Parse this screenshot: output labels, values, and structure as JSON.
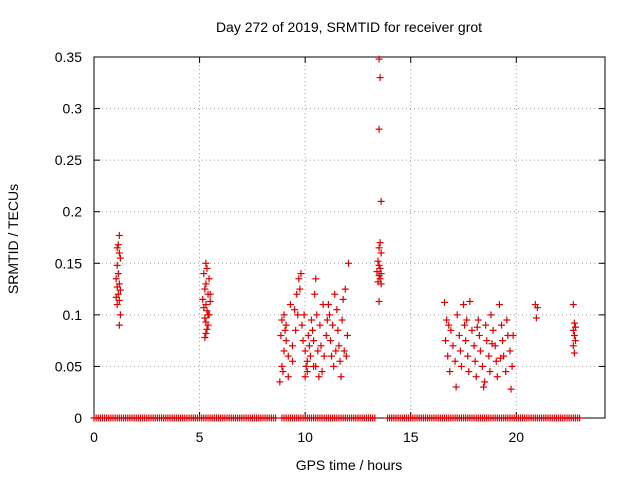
{
  "chart_data": {
    "type": "scatter",
    "title": "Day 272 of 2019, SRMTID for receiver grot",
    "xlabel": "GPS time / hours",
    "ylabel": "SRMTID / TECUs",
    "xlim": [
      0,
      24.2
    ],
    "ylim": [
      0,
      0.35
    ],
    "x_ticks": [
      0,
      5,
      10,
      15,
      20
    ],
    "x_tick_labels": [
      "0",
      "5",
      "10",
      "15",
      "20"
    ],
    "y_ticks": [
      0,
      0.05,
      0.1,
      0.15,
      0.2,
      0.25,
      0.3,
      0.35
    ],
    "y_tick_labels": [
      "0",
      "0.05",
      "0.1",
      "0.15",
      "0.2",
      "0.25",
      "0.3",
      "0.35"
    ],
    "grid": true,
    "marker": "+",
    "colors": {
      "series": "#dd0000",
      "grid": "#a0a0a0",
      "axis": "#000000"
    },
    "series": [
      {
        "name": "SRMTID",
        "points": [
          [
            1.2,
            0.177
          ],
          [
            1.15,
            0.168
          ],
          [
            1.1,
            0.165
          ],
          [
            1.2,
            0.16
          ],
          [
            1.25,
            0.155
          ],
          [
            1.1,
            0.148
          ],
          [
            1.15,
            0.14
          ],
          [
            1.05,
            0.135
          ],
          [
            1.2,
            0.13
          ],
          [
            1.1,
            0.127
          ],
          [
            1.25,
            0.124
          ],
          [
            1.15,
            0.12
          ],
          [
            1.05,
            0.117
          ],
          [
            1.2,
            0.114
          ],
          [
            1.1,
            0.11
          ],
          [
            1.25,
            0.1
          ],
          [
            1.2,
            0.09
          ],
          [
            5.3,
            0.15
          ],
          [
            5.35,
            0.145
          ],
          [
            5.2,
            0.14
          ],
          [
            5.45,
            0.135
          ],
          [
            5.3,
            0.13
          ],
          [
            5.25,
            0.125
          ],
          [
            5.4,
            0.12
          ],
          [
            5.15,
            0.115
          ],
          [
            5.5,
            0.113
          ],
          [
            5.3,
            0.11
          ],
          [
            5.2,
            0.107
          ],
          [
            5.35,
            0.104
          ],
          [
            5.45,
            0.1
          ],
          [
            5.25,
            0.097
          ],
          [
            5.3,
            0.093
          ],
          [
            5.4,
            0.09
          ],
          [
            5.35,
            0.086
          ],
          [
            5.3,
            0.082
          ],
          [
            5.25,
            0.078
          ],
          [
            5.4,
            0.1
          ],
          [
            5.5,
            0.12
          ],
          [
            8.8,
            0.035
          ],
          [
            8.9,
            0.05
          ],
          [
            9.0,
            0.065
          ],
          [
            8.85,
            0.08
          ],
          [
            9.1,
            0.09
          ],
          [
            9.0,
            0.1
          ],
          [
            8.95,
            0.045
          ],
          [
            9.2,
            0.06
          ],
          [
            9.1,
            0.075
          ],
          [
            8.9,
            0.095
          ],
          [
            9.3,
            0.11
          ],
          [
            9.4,
            0.07
          ],
          [
            9.5,
            0.105
          ],
          [
            9.6,
            0.12
          ],
          [
            9.55,
            0.085
          ],
          [
            9.7,
            0.135
          ],
          [
            9.8,
            0.14
          ],
          [
            9.75,
            0.125
          ],
          [
            9.85,
            0.09
          ],
          [
            9.9,
            0.075
          ],
          [
            9.95,
            0.1
          ],
          [
            10.0,
            0.065
          ],
          [
            10.05,
            0.05
          ],
          [
            10.1,
            0.055
          ],
          [
            10.0,
            0.04
          ],
          [
            10.15,
            0.08
          ],
          [
            10.2,
            0.07
          ],
          [
            10.25,
            0.06
          ],
          [
            10.3,
            0.095
          ],
          [
            10.35,
            0.085
          ],
          [
            10.4,
            0.075
          ],
          [
            10.45,
            0.12
          ],
          [
            10.5,
            0.135
          ],
          [
            10.55,
            0.1
          ],
          [
            10.5,
            0.05
          ],
          [
            10.6,
            0.065
          ],
          [
            10.7,
            0.09
          ],
          [
            10.75,
            0.07
          ],
          [
            10.8,
            0.045
          ],
          [
            10.9,
            0.06
          ],
          [
            11.0,
            0.08
          ],
          [
            11.05,
            0.095
          ],
          [
            11.1,
            0.11
          ],
          [
            11.15,
            0.1
          ],
          [
            11.2,
            0.075
          ],
          [
            11.25,
            0.06
          ],
          [
            11.3,
            0.09
          ],
          [
            11.35,
            0.05
          ],
          [
            11.4,
            0.12
          ],
          [
            11.5,
            0.105
          ],
          [
            11.55,
            0.085
          ],
          [
            11.6,
            0.07
          ],
          [
            11.65,
            0.055
          ],
          [
            11.7,
            0.04
          ],
          [
            11.75,
            0.095
          ],
          [
            11.8,
            0.115
          ],
          [
            11.85,
            0.065
          ],
          [
            11.9,
            0.125
          ],
          [
            12.0,
            0.08
          ],
          [
            12.05,
            0.15
          ],
          [
            9.2,
            0.04
          ],
          [
            9.4,
            0.055
          ],
          [
            10.1,
            0.045
          ],
          [
            10.65,
            0.04
          ],
          [
            11.45,
            0.065
          ],
          [
            9.65,
            0.1
          ],
          [
            10.85,
            0.11
          ],
          [
            11.95,
            0.06
          ],
          [
            9.05,
            0.085
          ],
          [
            10.4,
            0.05
          ],
          [
            13.5,
            0.348
          ],
          [
            13.55,
            0.33
          ],
          [
            13.5,
            0.28
          ],
          [
            13.6,
            0.21
          ],
          [
            13.55,
            0.17
          ],
          [
            13.5,
            0.165
          ],
          [
            13.6,
            0.16
          ],
          [
            13.45,
            0.152
          ],
          [
            13.5,
            0.148
          ],
          [
            13.55,
            0.145
          ],
          [
            13.4,
            0.142
          ],
          [
            13.6,
            0.14
          ],
          [
            13.5,
            0.138
          ],
          [
            13.55,
            0.135
          ],
          [
            13.45,
            0.132
          ],
          [
            13.6,
            0.13
          ],
          [
            13.5,
            0.113
          ],
          [
            16.6,
            0.112
          ],
          [
            16.7,
            0.095
          ],
          [
            16.8,
            0.09
          ],
          [
            16.65,
            0.075
          ],
          [
            16.75,
            0.06
          ],
          [
            16.85,
            0.045
          ],
          [
            16.9,
            0.085
          ],
          [
            17.0,
            0.07
          ],
          [
            17.1,
            0.055
          ],
          [
            17.2,
            0.1
          ],
          [
            17.3,
            0.08
          ],
          [
            17.35,
            0.065
          ],
          [
            17.4,
            0.05
          ],
          [
            17.5,
            0.11
          ],
          [
            17.55,
            0.09
          ],
          [
            17.6,
            0.075
          ],
          [
            17.7,
            0.06
          ],
          [
            17.75,
            0.045
          ],
          [
            17.8,
            0.113
          ],
          [
            17.9,
            0.085
          ],
          [
            18.0,
            0.07
          ],
          [
            18.05,
            0.055
          ],
          [
            18.1,
            0.04
          ],
          [
            18.2,
            0.095
          ],
          [
            18.25,
            0.08
          ],
          [
            18.3,
            0.065
          ],
          [
            18.4,
            0.05
          ],
          [
            18.5,
            0.035
          ],
          [
            18.55,
            0.09
          ],
          [
            18.6,
            0.075
          ],
          [
            18.7,
            0.06
          ],
          [
            18.75,
            0.045
          ],
          [
            18.8,
            0.1
          ],
          [
            18.9,
            0.085
          ],
          [
            19.0,
            0.07
          ],
          [
            19.05,
            0.055
          ],
          [
            19.1,
            0.04
          ],
          [
            19.2,
            0.11
          ],
          [
            19.3,
            0.09
          ],
          [
            19.35,
            0.075
          ],
          [
            19.4,
            0.06
          ],
          [
            19.5,
            0.045
          ],
          [
            19.55,
            0.095
          ],
          [
            19.6,
            0.08
          ],
          [
            19.7,
            0.065
          ],
          [
            19.8,
            0.05
          ],
          [
            19.85,
            0.08
          ],
          [
            17.15,
            0.03
          ],
          [
            18.45,
            0.03
          ],
          [
            19.75,
            0.028
          ],
          [
            17.65,
            0.095
          ],
          [
            18.15,
            0.088
          ],
          [
            18.85,
            0.072
          ],
          [
            19.25,
            0.058
          ],
          [
            20.9,
            0.11
          ],
          [
            21.0,
            0.107
          ],
          [
            20.95,
            0.097
          ],
          [
            22.7,
            0.11
          ],
          [
            22.75,
            0.092
          ],
          [
            22.8,
            0.088
          ],
          [
            22.7,
            0.085
          ],
          [
            22.75,
            0.08
          ],
          [
            22.8,
            0.075
          ],
          [
            22.7,
            0.07
          ],
          [
            22.75,
            0.063
          ]
        ],
        "zero_line_segments": [
          [
            0.0,
            8.6
          ],
          [
            8.9,
            13.3
          ],
          [
            13.9,
            23.0
          ]
        ]
      }
    ]
  }
}
